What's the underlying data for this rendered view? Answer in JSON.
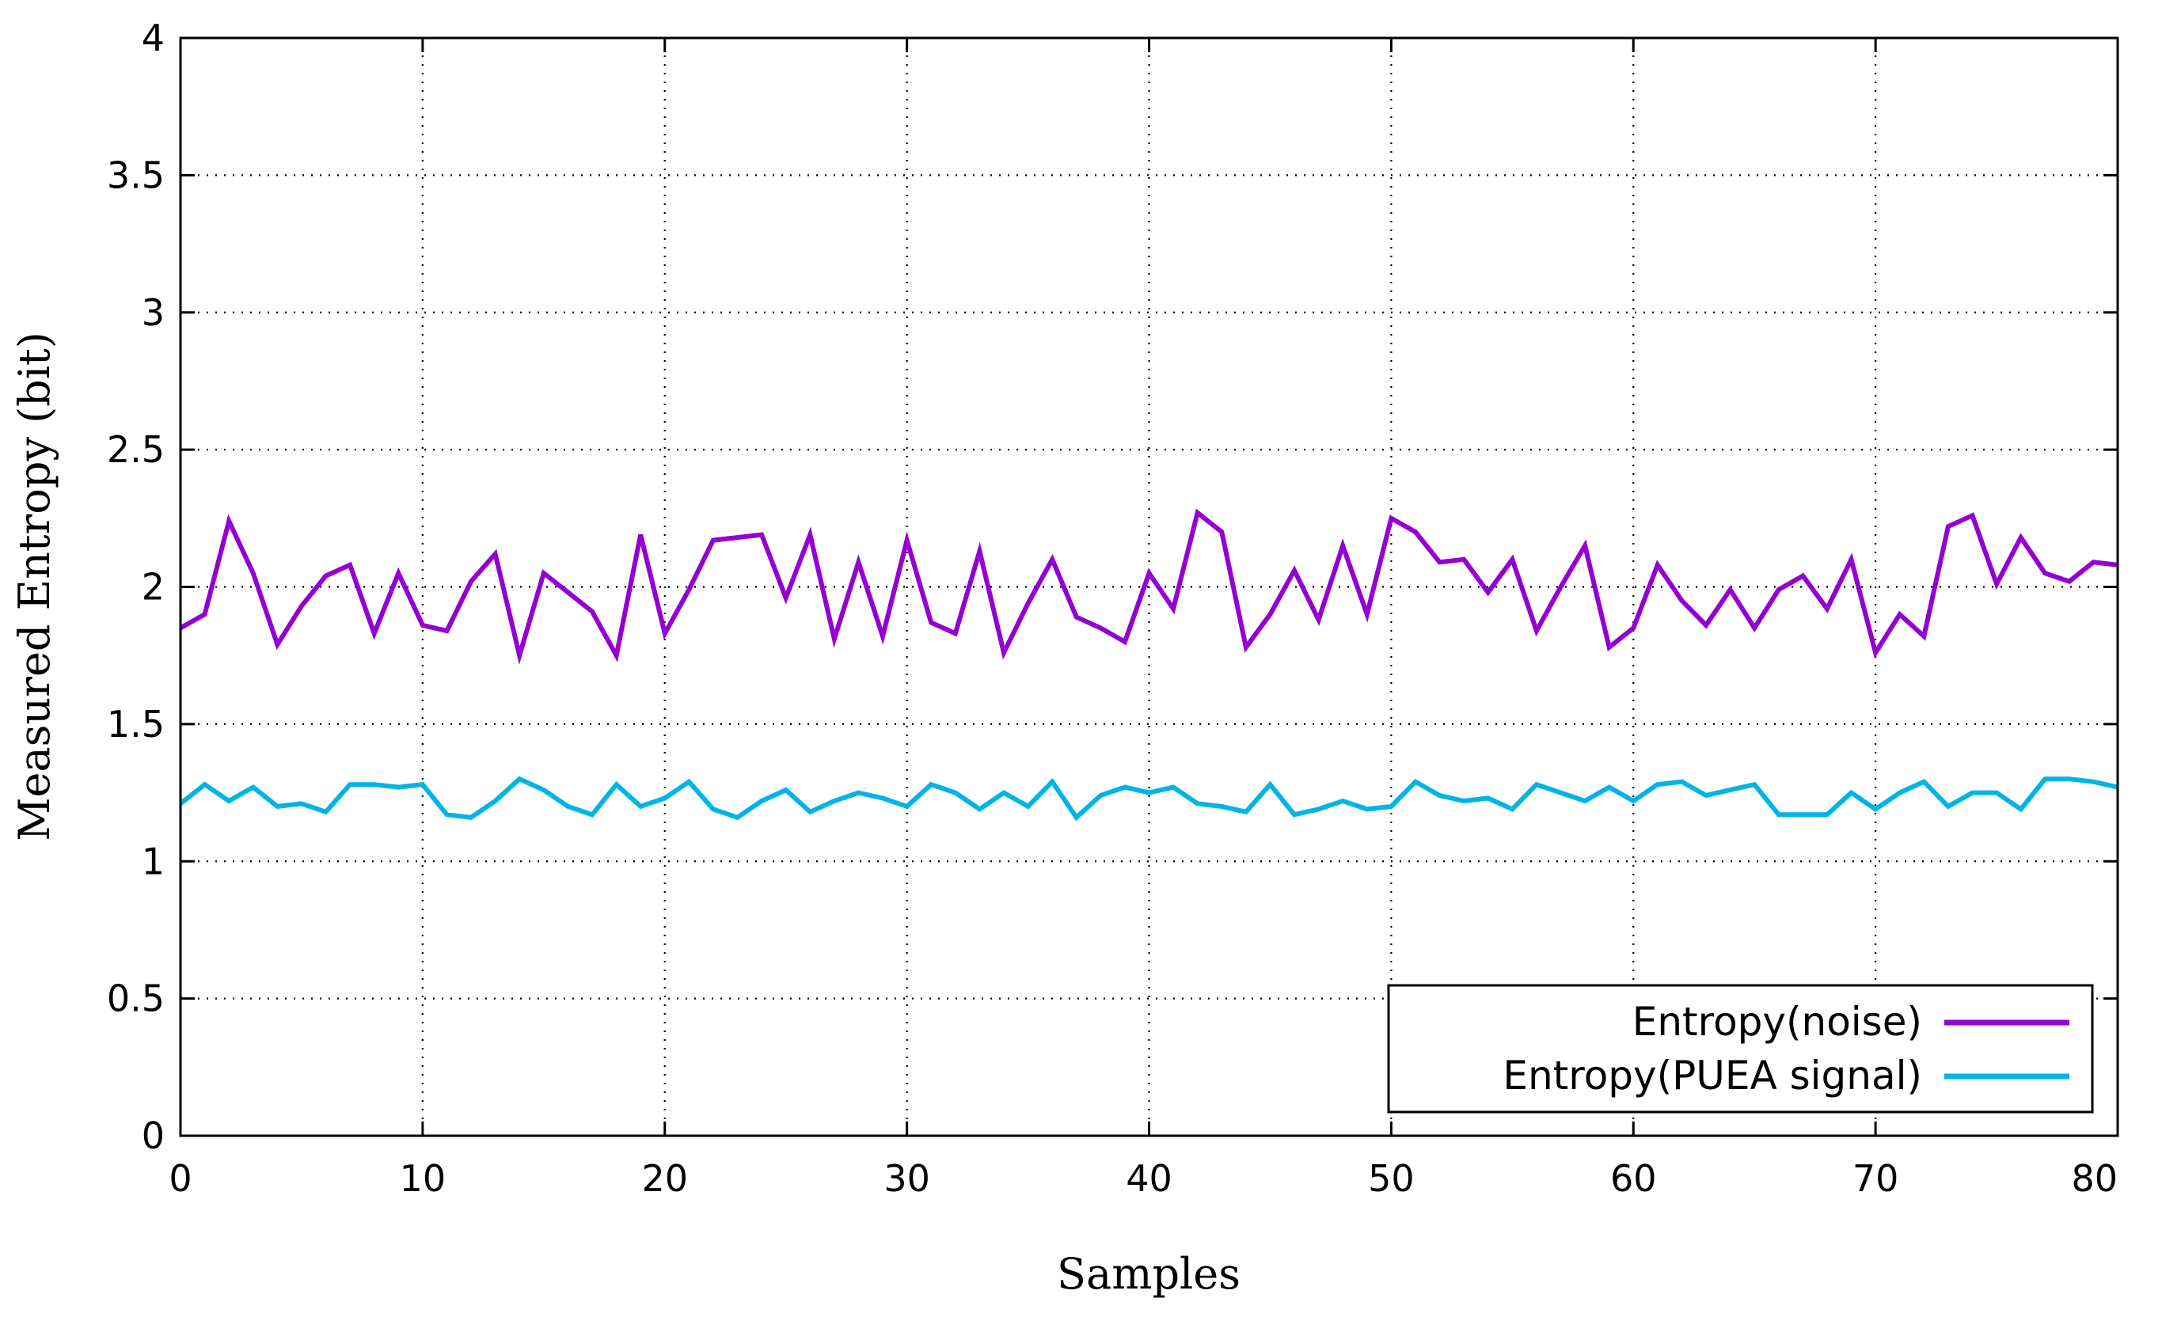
{
  "chart_data": {
    "type": "line",
    "title": "",
    "xlabel": "Samples",
    "ylabel": "Measured Entropy (bit)",
    "xlim": [
      0,
      80
    ],
    "ylim": [
      0,
      4
    ],
    "grid": true,
    "legend_position": "bottom-right",
    "x_ticks": [
      0,
      10,
      20,
      30,
      40,
      50,
      60,
      70,
      80
    ],
    "y_ticks": [
      0,
      0.5,
      1,
      1.5,
      2,
      2.5,
      3,
      3.5,
      4
    ],
    "x_tick_labels": [
      "0",
      "10",
      "20",
      "30",
      "40",
      "50",
      "60",
      "70",
      "80"
    ],
    "y_tick_labels": [
      "0",
      "0.5",
      "1",
      "1.5",
      "2",
      "2.5",
      "3",
      "3.5",
      "4"
    ],
    "x": [
      0,
      1,
      2,
      3,
      4,
      5,
      6,
      7,
      8,
      9,
      10,
      11,
      12,
      13,
      14,
      15,
      16,
      17,
      18,
      19,
      20,
      21,
      22,
      23,
      24,
      25,
      26,
      27,
      28,
      29,
      30,
      31,
      32,
      33,
      34,
      35,
      36,
      37,
      38,
      39,
      40,
      41,
      42,
      43,
      44,
      45,
      46,
      47,
      48,
      49,
      50,
      51,
      52,
      53,
      54,
      55,
      56,
      57,
      58,
      59,
      60,
      61,
      62,
      63,
      64,
      65,
      66,
      67,
      68,
      69,
      70,
      71,
      72,
      73,
      74,
      75,
      76,
      77,
      78,
      79,
      80
    ],
    "series": [
      {
        "name": "Entropy(noise)",
        "color": "#9400d3",
        "values": [
          1.85,
          1.9,
          2.24,
          2.05,
          1.79,
          1.93,
          2.04,
          2.08,
          1.83,
          2.05,
          1.86,
          1.84,
          2.02,
          2.12,
          1.75,
          2.05,
          1.98,
          1.91,
          1.75,
          2.19,
          1.83,
          1.99,
          2.17,
          2.18,
          2.19,
          1.96,
          2.19,
          1.81,
          2.09,
          1.82,
          2.17,
          1.87,
          1.83,
          2.13,
          1.76,
          1.94,
          2.1,
          1.89,
          1.85,
          1.8,
          2.05,
          1.92,
          2.27,
          2.2,
          1.78,
          1.9,
          2.06,
          1.88,
          2.15,
          1.9,
          2.25,
          2.2,
          2.09,
          2.1,
          1.98,
          2.1,
          1.84,
          2.0,
          2.15,
          1.78,
          1.85,
          2.08,
          1.95,
          1.86,
          1.99,
          1.85,
          1.99,
          2.04,
          1.92,
          2.1,
          1.76,
          1.9,
          1.82,
          2.22,
          2.26,
          2.01,
          2.18,
          2.05,
          2.02,
          2.09,
          2.08
        ]
      },
      {
        "name": "Entropy(PUEA signal)",
        "color": "#00b4e6",
        "values": [
          1.21,
          1.28,
          1.22,
          1.27,
          1.2,
          1.21,
          1.18,
          1.28,
          1.28,
          1.27,
          1.28,
          1.17,
          1.16,
          1.22,
          1.3,
          1.26,
          1.2,
          1.17,
          1.28,
          1.2,
          1.23,
          1.29,
          1.19,
          1.16,
          1.22,
          1.26,
          1.18,
          1.22,
          1.25,
          1.23,
          1.2,
          1.28,
          1.25,
          1.19,
          1.25,
          1.2,
          1.29,
          1.16,
          1.24,
          1.27,
          1.25,
          1.27,
          1.21,
          1.2,
          1.18,
          1.28,
          1.17,
          1.19,
          1.22,
          1.19,
          1.2,
          1.29,
          1.24,
          1.22,
          1.23,
          1.19,
          1.28,
          1.25,
          1.22,
          1.27,
          1.22,
          1.28,
          1.29,
          1.24,
          1.26,
          1.28,
          1.17,
          1.17,
          1.17,
          1.25,
          1.19,
          1.25,
          1.29,
          1.2,
          1.25,
          1.25,
          1.19,
          1.3,
          1.3,
          1.29,
          1.27
        ]
      }
    ]
  }
}
